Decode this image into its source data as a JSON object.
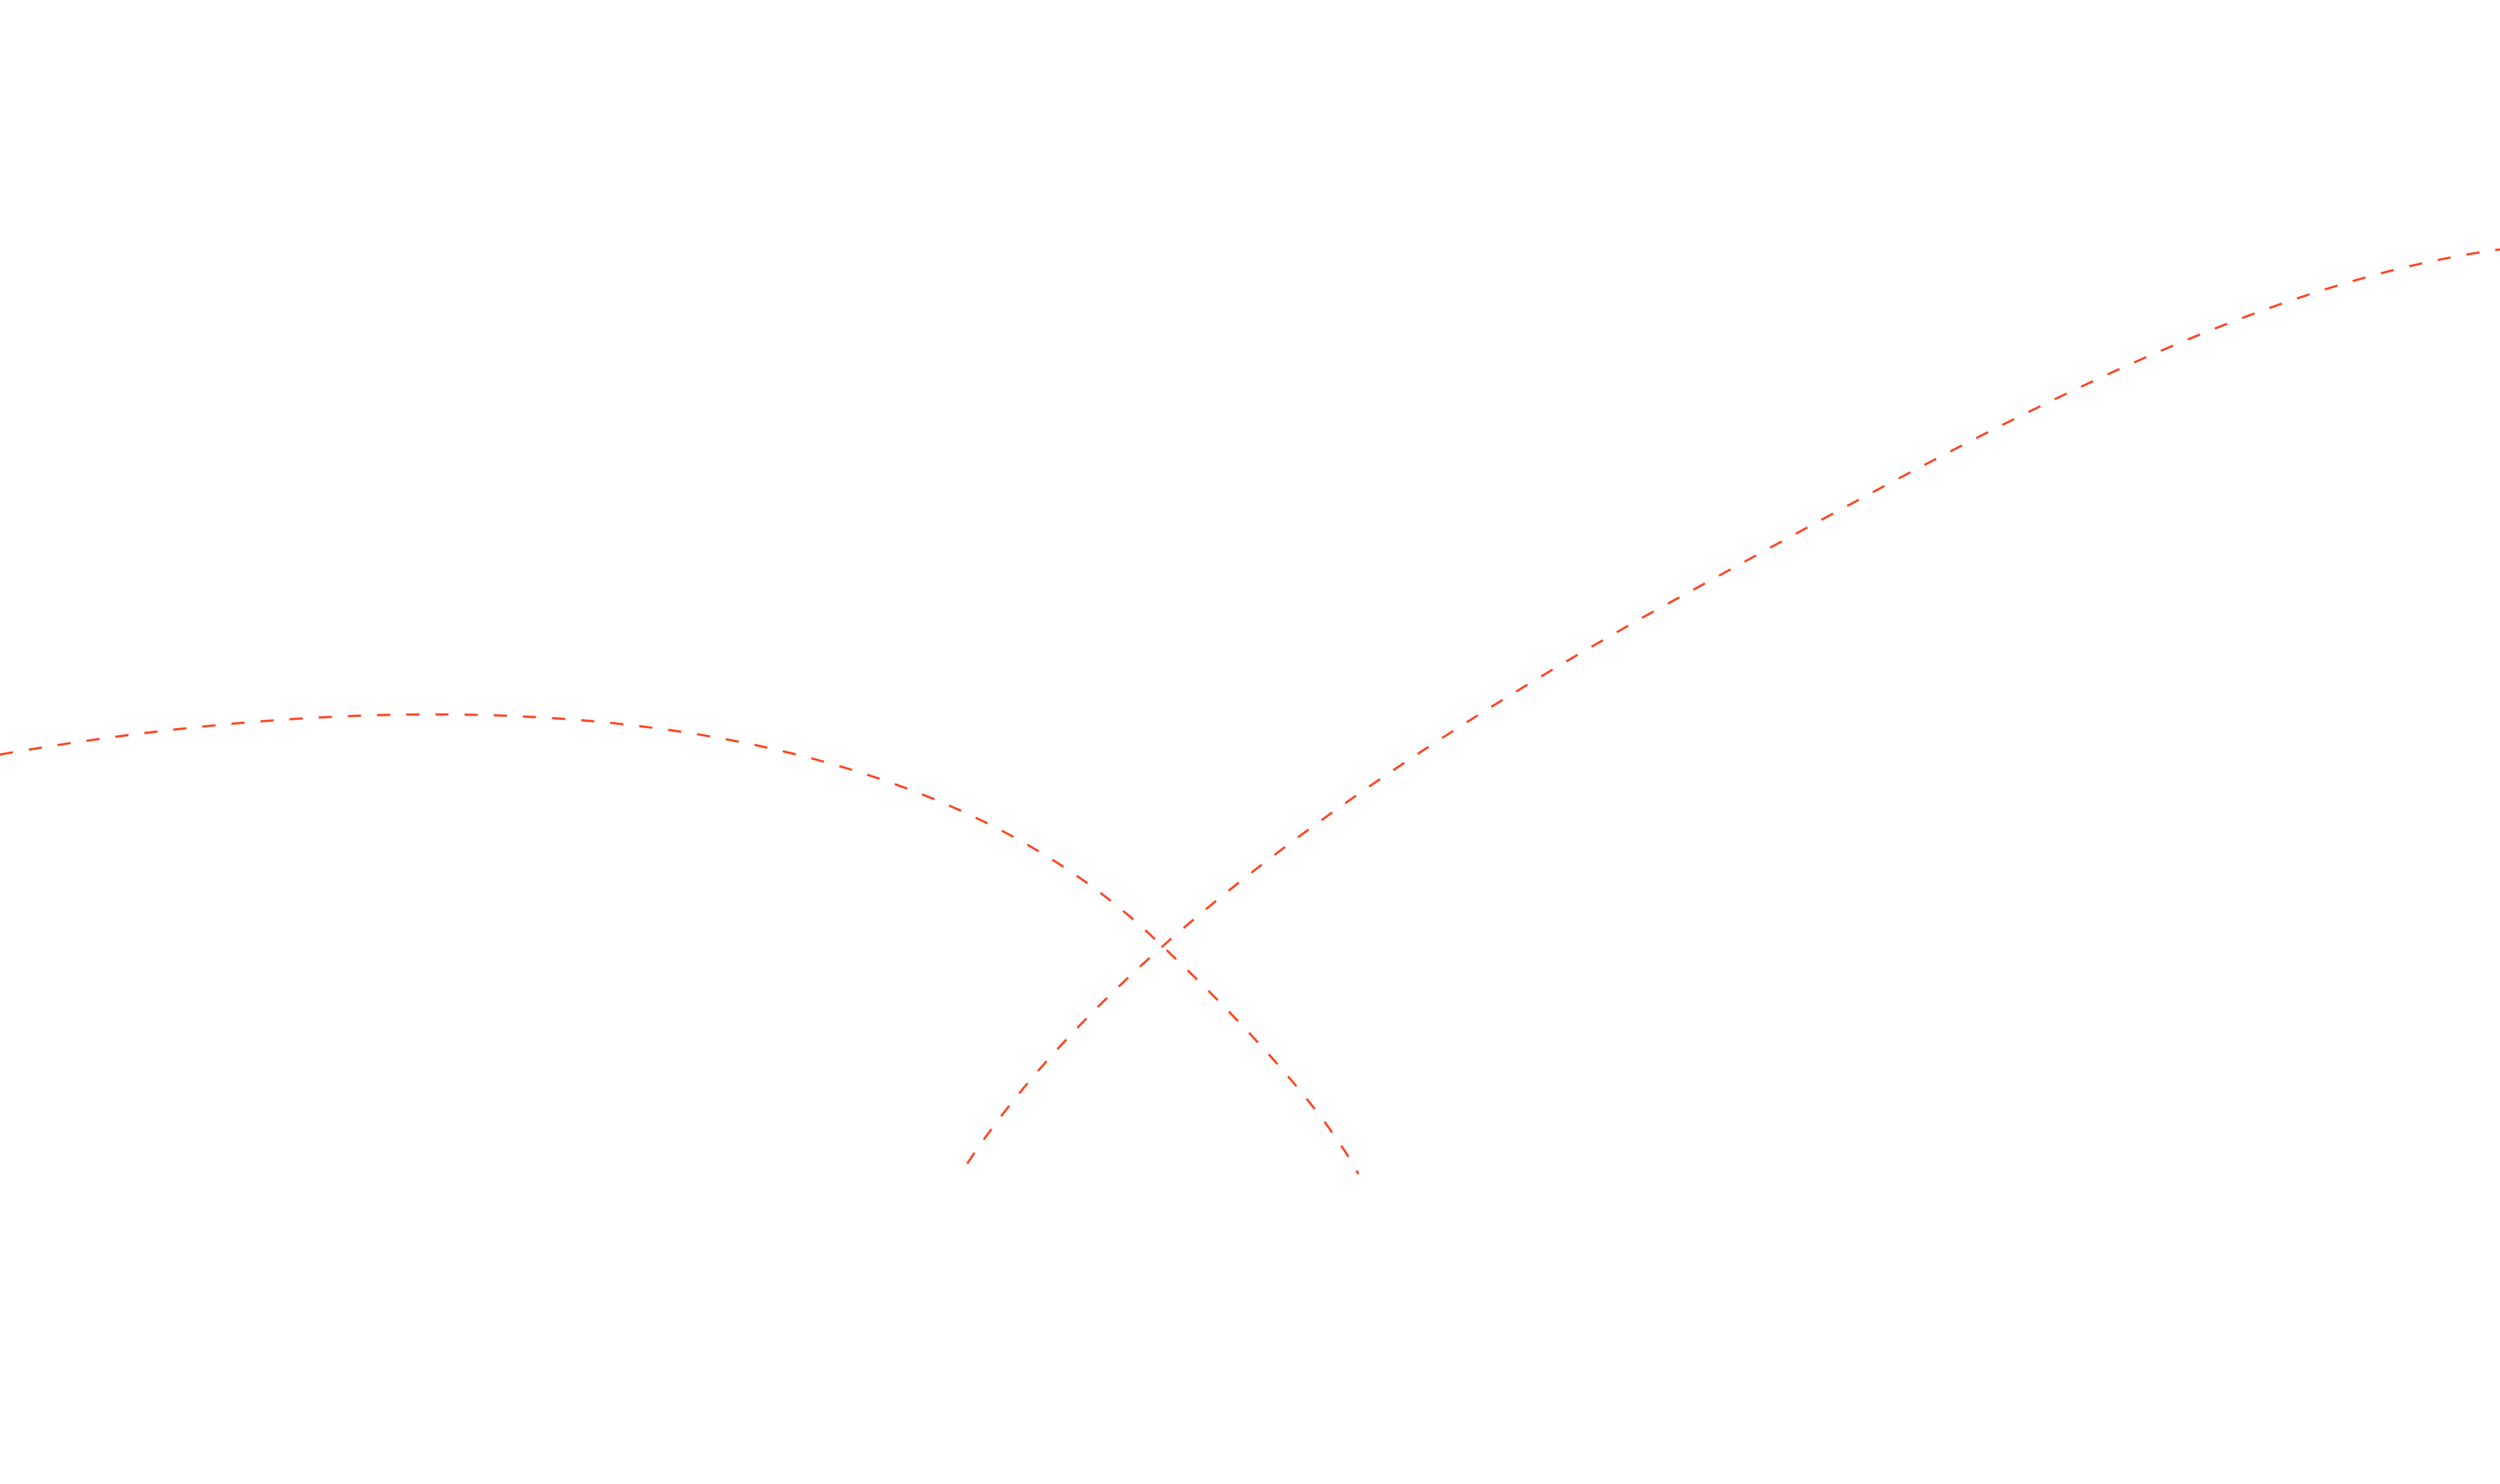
{
  "canvas": {
    "background_color": "#ffffff"
  },
  "decorations": {
    "arc_color": "#ff4422",
    "arc_style": "dashed",
    "arcs": [
      {
        "name": "left-descending-arc"
      },
      {
        "name": "right-ascending-arc"
      }
    ]
  }
}
